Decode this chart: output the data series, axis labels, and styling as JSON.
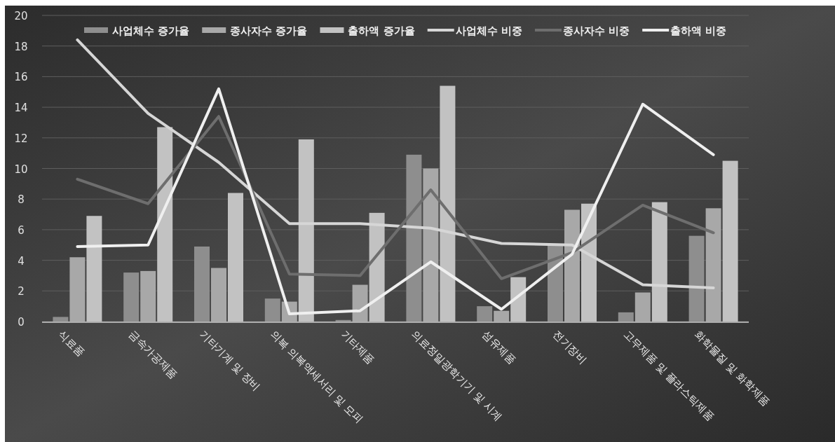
{
  "chart_data": {
    "type": "bar",
    "categories": [
      "식료품",
      "금속가공제품",
      "기타기계 및 장비",
      "의복 의복액세서리 및 모피",
      "기타제품",
      "의료정밀광학기기 및 시계",
      "섬유제품",
      "전기장비",
      "고무제품 및 플라스틱제품",
      "화학물질 및 화학제품"
    ],
    "series": [
      {
        "name": "사업체수 증가율",
        "color": "#8e8e8e",
        "values": [
          0.3,
          3.2,
          4.9,
          1.5,
          0.1,
          10.9,
          1.0,
          5.0,
          0.6,
          5.6
        ]
      },
      {
        "name": "종사자수 증가율",
        "color": "#a8a8a8",
        "values": [
          4.2,
          3.3,
          3.5,
          1.3,
          2.4,
          10.0,
          0.7,
          7.3,
          1.9,
          7.4
        ]
      },
      {
        "name": "출하액 증가율",
        "color": "#c2c2c2",
        "values": [
          6.9,
          12.7,
          8.4,
          11.9,
          7.1,
          15.4,
          2.9,
          7.7,
          7.8,
          10.5
        ]
      },
      {
        "name": "사업체수 비중",
        "type": "line",
        "color": "#d6d6d6",
        "values": [
          18.4,
          13.6,
          10.4,
          6.4,
          6.4,
          6.1,
          5.1,
          5.0,
          2.4,
          2.2
        ]
      },
      {
        "name": "종사자수 비중",
        "type": "line",
        "color": "#6e6e6e",
        "values": [
          9.3,
          7.7,
          13.4,
          3.1,
          3.0,
          8.6,
          2.8,
          4.5,
          7.6,
          5.8
        ]
      },
      {
        "name": "출하액 비중",
        "type": "line",
        "color": "#efefef",
        "values": [
          4.9,
          5.0,
          15.2,
          0.5,
          0.7,
          3.9,
          0.8,
          4.4,
          14.2,
          10.9
        ]
      }
    ],
    "ylim": [
      0,
      20
    ],
    "yticks": [
      0,
      2,
      4,
      6,
      8,
      10,
      12,
      14,
      16,
      18,
      20
    ],
    "grid": "y",
    "legend": "top"
  }
}
